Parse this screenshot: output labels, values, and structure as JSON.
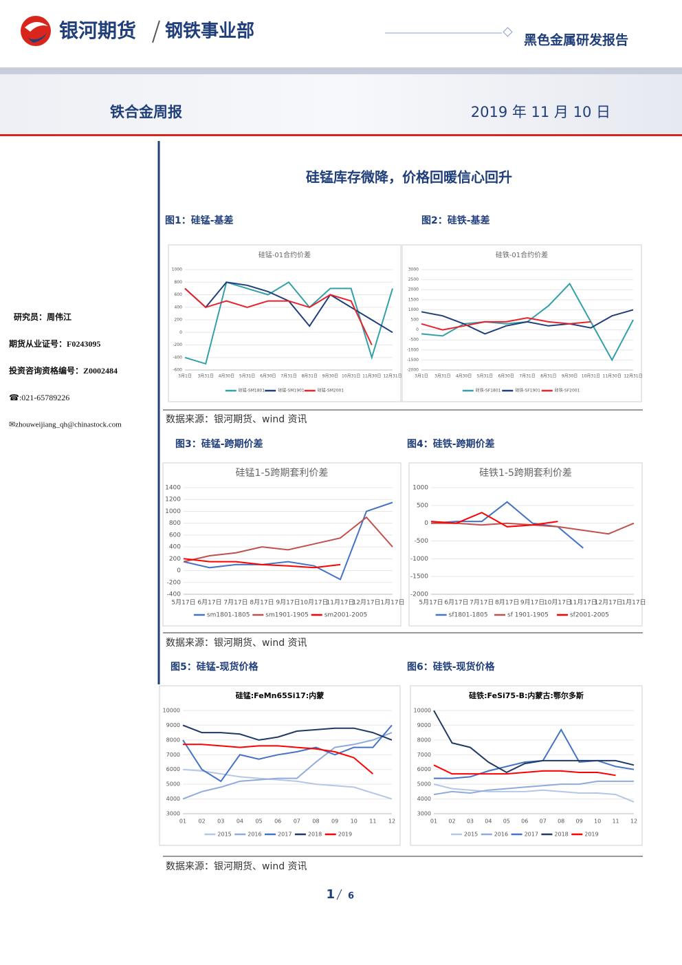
{
  "header": {
    "company": "银河期货",
    "department": "钢铁事业部",
    "report_type": "黑色金属研发报告"
  },
  "title_bar": {
    "name": "铁合金周报",
    "date": "2019 年 11 月 10 日"
  },
  "headline": "硅锰库存微降，价格回暖信心回升",
  "sidebar": [
    "研究员：周伟江",
    "期货从业证号：F0243095",
    "投资咨询资格编号：Z0002484",
    "☎:021-65789226",
    "✉zhouweijiang_qh@chinastock.com"
  ],
  "captions": [
    "图1：硅锰-基差",
    "图2：硅铁-基差",
    "图3：硅锰-跨期价差",
    "图4：硅铁-跨期价差",
    "图5：硅锰-现货价格",
    "图6：硅铁-现货价格"
  ],
  "sources": [
    "数据来源：银河期货、wind 资讯",
    "数据来源：银河期货、wind 资讯",
    "数据来源：银河期货、wind 资讯"
  ],
  "footer": {
    "page": "1",
    "total": "6"
  },
  "chart_data": [
    {
      "type": "line",
      "title": "硅锰-01合约价差",
      "categories": [
        "3月1日",
        "3月31日",
        "4月30日",
        "5月31日",
        "6月30日",
        "7月31日",
        "8月31日",
        "9月30日",
        "10月31日",
        "11月30日",
        "12月31日"
      ],
      "series": [
        {
          "name": "硅锰-SM1801",
          "color": "#31a0a8",
          "values": [
            -400,
            -500,
            800,
            700,
            600,
            800,
            400,
            700,
            700,
            -400,
            700
          ]
        },
        {
          "name": "硅锰-SM1901",
          "color": "#1f3e7a",
          "values": [
            700,
            400,
            800,
            750,
            650,
            500,
            100,
            600,
            400,
            200,
            0
          ]
        },
        {
          "name": "硅锰-SM2001",
          "color": "#e8212a",
          "values": [
            700,
            400,
            500,
            400,
            500,
            500,
            400,
            600,
            500,
            -200,
            null
          ]
        }
      ],
      "ylim": [
        -600,
        1000
      ],
      "yticks": [
        -600,
        -400,
        -200,
        0,
        200,
        400,
        600,
        800,
        1000
      ],
      "grid": true
    },
    {
      "type": "line",
      "title": "硅铁-01合约价差",
      "categories": [
        "3月1日",
        "3月31日",
        "4月30日",
        "5月31日",
        "6月30日",
        "7月31日",
        "8月31日",
        "9月30日",
        "10月31日",
        "11月30日",
        "12月31日"
      ],
      "series": [
        {
          "name": "硅铁-SF1801",
          "color": "#31a0a8",
          "values": [
            -200,
            -300,
            300,
            400,
            300,
            400,
            1200,
            2300,
            400,
            -1500,
            500
          ]
        },
        {
          "name": "硅铁-SF1901",
          "color": "#1f3e7a",
          "values": [
            900,
            700,
            300,
            -200,
            200,
            400,
            200,
            300,
            100,
            700,
            1000
          ]
        },
        {
          "name": "硅铁-SF2001",
          "color": "#e8212a",
          "values": [
            300,
            0,
            200,
            400,
            400,
            600,
            400,
            300,
            400,
            null,
            null
          ]
        }
      ],
      "ylim": [
        -2000,
        3000
      ],
      "yticks": [
        -2000,
        -1500,
        -1000,
        -500,
        0,
        500,
        1000,
        1500,
        2000,
        2500,
        3000
      ],
      "grid": true
    },
    {
      "type": "line",
      "title": "硅锰1-5跨期套利价差",
      "categories": [
        "5月17日",
        "6月17日",
        "7月17日",
        "8月17日",
        "9月17日",
        "10月17日",
        "11月17日",
        "12月17日",
        "1月17日"
      ],
      "series": [
        {
          "name": "sm1801-1805",
          "color": "#4472c4",
          "values": [
            150,
            50,
            100,
            100,
            150,
            80,
            -150,
            1000,
            1150
          ]
        },
        {
          "name": "sm1901-1905",
          "color": "#c0504d",
          "values": [
            150,
            250,
            300,
            400,
            350,
            450,
            550,
            900,
            400
          ]
        },
        {
          "name": "sm2001-2005",
          "color": "#ff0000",
          "values": [
            200,
            150,
            150,
            100,
            80,
            50,
            100,
            null,
            null
          ]
        }
      ],
      "ylim": [
        -400,
        1400
      ],
      "yticks": [
        -400,
        -200,
        0,
        200,
        400,
        600,
        800,
        1000,
        1200,
        1400
      ],
      "grid": true
    },
    {
      "type": "line",
      "title": "硅铁1-5跨期套利价差",
      "categories": [
        "5月17日",
        "6月17日",
        "7月17日",
        "8月17日",
        "9月17日",
        "10月17日",
        "11月17日",
        "12月17日",
        "1月17日"
      ],
      "series": [
        {
          "name": "sf1801-1805",
          "color": "#4472c4",
          "values": [
            0,
            50,
            50,
            600,
            0,
            -100,
            -700,
            null,
            null
          ]
        },
        {
          "name": "sf 1901-1905",
          "color": "#c0504d",
          "values": [
            0,
            0,
            -50,
            0,
            -50,
            -100,
            -200,
            -300,
            0
          ]
        },
        {
          "name": "sf2001-2005",
          "color": "#ff0000",
          "values": [
            50,
            0,
            300,
            -100,
            -50,
            50,
            null,
            null,
            null
          ]
        }
      ],
      "ylim": [
        -2000,
        1000
      ],
      "yticks": [
        -2000,
        -1500,
        -1000,
        -500,
        0,
        500,
        1000
      ],
      "grid": true
    },
    {
      "type": "line",
      "title": "硅锰:FeMn65Si17:内蒙",
      "categories": [
        "01",
        "02",
        "03",
        "04",
        "05",
        "06",
        "07",
        "08",
        "09",
        "10",
        "11",
        "12"
      ],
      "series": [
        {
          "name": "2015",
          "color": "#b4c7e7",
          "values": [
            6000,
            5900,
            5700,
            5500,
            5400,
            5300,
            5200,
            5000,
            4900,
            4800,
            4400,
            4000
          ]
        },
        {
          "name": "2016",
          "color": "#8faadc",
          "values": [
            4000,
            4500,
            4800,
            5200,
            5300,
            5400,
            5400,
            6500,
            7500,
            7700,
            8000,
            8500
          ]
        },
        {
          "name": "2017",
          "color": "#4472c4",
          "values": [
            8000,
            6000,
            5200,
            7000,
            6700,
            7000,
            7200,
            7500,
            7000,
            7500,
            7500,
            9000
          ]
        },
        {
          "name": "2018",
          "color": "#1f3864",
          "values": [
            9000,
            8500,
            8500,
            8400,
            8000,
            8200,
            8600,
            8700,
            8800,
            8800,
            8500,
            8000
          ]
        },
        {
          "name": "2019",
          "color": "#ff0000",
          "values": [
            7700,
            7700,
            7600,
            7500,
            7600,
            7600,
            7500,
            7400,
            7200,
            6800,
            5700,
            null
          ]
        }
      ],
      "ylim": [
        3000,
        10000
      ],
      "yticks": [
        3000,
        4000,
        5000,
        6000,
        7000,
        8000,
        9000,
        10000
      ],
      "grid": true
    },
    {
      "type": "line",
      "title": "硅铁:FeSi75-B:内蒙古:鄂尔多斯",
      "categories": [
        "01",
        "02",
        "03",
        "04",
        "05",
        "06",
        "07",
        "08",
        "09",
        "10",
        "11",
        "12"
      ],
      "series": [
        {
          "name": "2015",
          "color": "#b4c7e7",
          "values": [
            5000,
            4700,
            4600,
            4500,
            4500,
            4500,
            4600,
            4500,
            4400,
            4400,
            4300,
            3800
          ]
        },
        {
          "name": "2016",
          "color": "#8faadc",
          "values": [
            4300,
            4500,
            4400,
            4600,
            4700,
            4800,
            4900,
            5000,
            5000,
            5200,
            5200,
            5200
          ]
        },
        {
          "name": "2017",
          "color": "#4472c4",
          "values": [
            5400,
            5400,
            5500,
            5900,
            6200,
            6500,
            6600,
            8700,
            6500,
            6600,
            6200,
            6000
          ]
        },
        {
          "name": "2018",
          "color": "#1f3864",
          "values": [
            10000,
            7800,
            7500,
            6500,
            5800,
            6400,
            6600,
            6600,
            6600,
            6600,
            6600,
            6300
          ]
        },
        {
          "name": "2019",
          "color": "#ff0000",
          "values": [
            6300,
            5700,
            5700,
            5700,
            5700,
            5800,
            5900,
            5900,
            5800,
            5800,
            5600,
            null
          ]
        }
      ],
      "ylim": [
        3000,
        10000
      ],
      "yticks": [
        3000,
        4000,
        5000,
        6000,
        7000,
        8000,
        9000,
        10000
      ],
      "grid": true
    }
  ]
}
